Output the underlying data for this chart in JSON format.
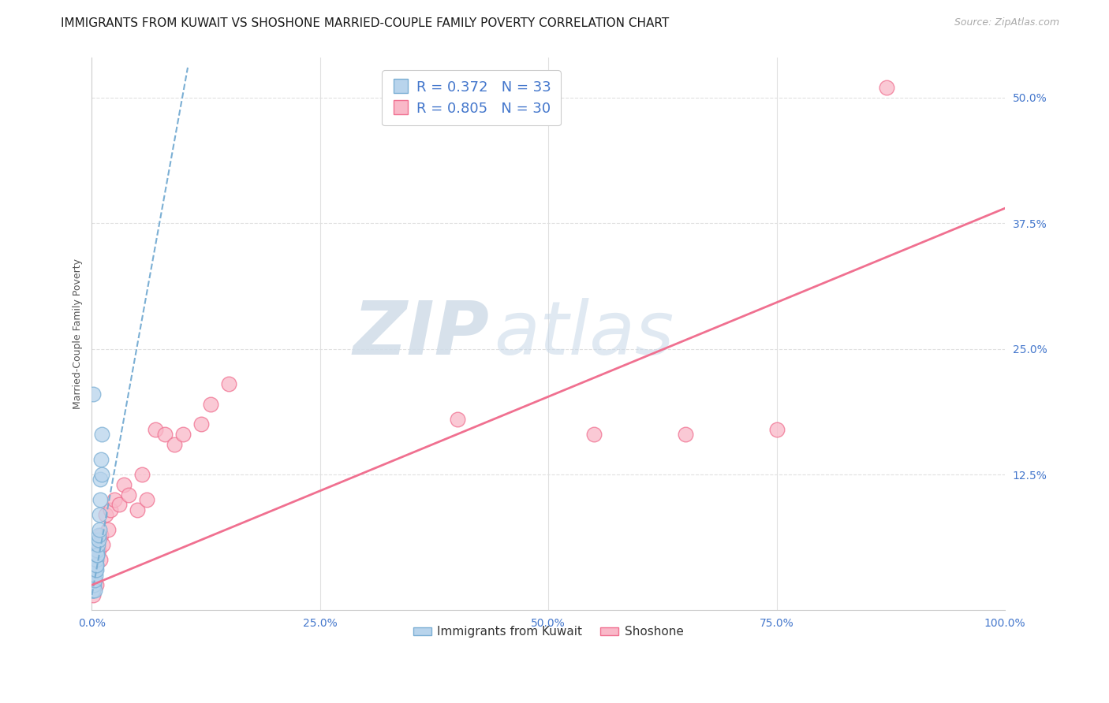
{
  "title": "IMMIGRANTS FROM KUWAIT VS SHOSHONE MARRIED-COUPLE FAMILY POVERTY CORRELATION CHART",
  "source": "Source: ZipAtlas.com",
  "ylabel_label": "Married-Couple Family Poverty",
  "x_tick_labels": [
    "0.0%",
    "25.0%",
    "50.0%",
    "75.0%",
    "100.0%"
  ],
  "x_tick_positions": [
    0,
    25,
    50,
    75,
    100
  ],
  "y_tick_labels": [
    "12.5%",
    "25.0%",
    "37.5%",
    "50.0%"
  ],
  "y_tick_positions": [
    12.5,
    25.0,
    37.5,
    50.0
  ],
  "blue_color": "#7bafd4",
  "pink_color": "#f07090",
  "blue_fill": "#b8d4ec",
  "pink_fill": "#f9b8c8",
  "blue_R": "0.372",
  "blue_N": "33",
  "pink_R": "0.805",
  "pink_N": "30",
  "blue_label": "Immigrants from Kuwait",
  "pink_label": "Shoshone",
  "xlim": [
    0,
    100
  ],
  "ylim": [
    -1,
    54
  ],
  "watermark_zip": "ZIP",
  "watermark_atlas": "atlas",
  "blue_scatter_x": [
    0.05,
    0.08,
    0.1,
    0.12,
    0.15,
    0.18,
    0.2,
    0.22,
    0.25,
    0.28,
    0.3,
    0.35,
    0.38,
    0.4,
    0.42,
    0.45,
    0.48,
    0.5,
    0.52,
    0.55,
    0.58,
    0.6,
    0.65,
    0.7,
    0.75,
    0.8,
    0.85,
    0.9,
    0.95,
    1.0,
    1.05,
    1.1,
    0.15
  ],
  "blue_scatter_y": [
    1.0,
    1.0,
    1.5,
    1.0,
    1.5,
    2.0,
    2.5,
    1.5,
    3.0,
    1.0,
    2.0,
    3.5,
    4.0,
    3.0,
    2.5,
    3.5,
    3.0,
    4.0,
    3.5,
    4.5,
    5.0,
    4.5,
    5.5,
    6.0,
    6.5,
    7.0,
    8.5,
    10.0,
    12.0,
    14.0,
    16.5,
    12.5,
    20.5
  ],
  "pink_scatter_x": [
    0.1,
    0.2,
    0.3,
    0.5,
    0.7,
    0.9,
    1.0,
    1.2,
    1.5,
    1.8,
    2.0,
    2.5,
    3.0,
    3.5,
    4.0,
    5.0,
    5.5,
    6.0,
    7.0,
    8.0,
    9.0,
    10.0,
    12.0,
    13.0,
    15.0,
    40.0,
    55.0,
    65.0,
    75.0,
    87.0
  ],
  "pink_scatter_y": [
    0.5,
    2.0,
    3.5,
    1.5,
    5.0,
    4.0,
    6.5,
    5.5,
    8.5,
    7.0,
    9.0,
    10.0,
    9.5,
    11.5,
    10.5,
    9.0,
    12.5,
    10.0,
    17.0,
    16.5,
    15.5,
    16.5,
    17.5,
    19.5,
    21.5,
    18.0,
    16.5,
    16.5,
    17.0,
    51.0
  ],
  "blue_line_x": [
    0.0,
    10.5
  ],
  "blue_line_y": [
    0.5,
    53.0
  ],
  "pink_line_x": [
    0.0,
    100.0
  ],
  "pink_line_y": [
    1.5,
    39.0
  ],
  "grid_color": "#e0e0e0",
  "background_color": "#ffffff",
  "title_fontsize": 11,
  "axis_label_fontsize": 9,
  "tick_fontsize": 10,
  "legend_fontsize": 13
}
